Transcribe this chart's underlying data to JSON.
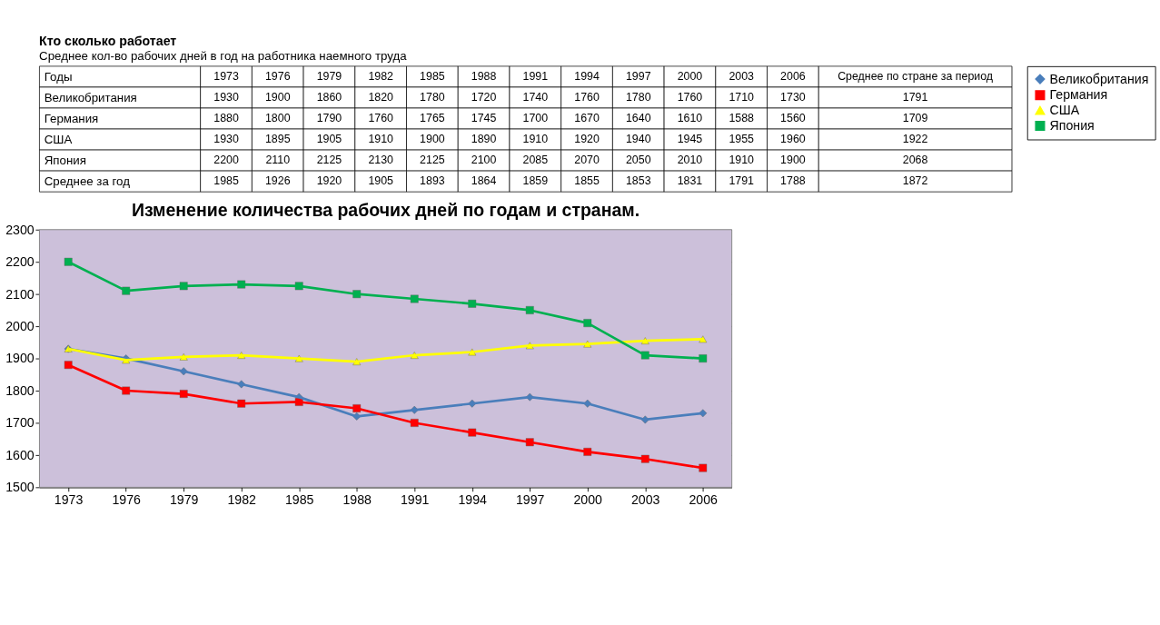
{
  "chart_data": {
    "type": "line",
    "title": "Изменение количества рабочих дней по годам и странам.",
    "categories": [
      "1973",
      "1976",
      "1979",
      "1982",
      "1985",
      "1988",
      "1991",
      "1994",
      "1997",
      "2000",
      "2003",
      "2006"
    ],
    "series": [
      {
        "name": "Великобритания",
        "color": "#4a7ebb",
        "marker": "diamond",
        "values": [
          1930,
          1900,
          1860,
          1820,
          1780,
          1720,
          1740,
          1760,
          1780,
          1760,
          1710,
          1730
        ]
      },
      {
        "name": "Германия",
        "color": "#ff0000",
        "marker": "square",
        "values": [
          1880,
          1800,
          1790,
          1760,
          1765,
          1745,
          1700,
          1670,
          1640,
          1610,
          1588,
          1560
        ]
      },
      {
        "name": "США",
        "color": "#ffff00",
        "marker": "triangle",
        "values": [
          1930,
          1895,
          1905,
          1910,
          1900,
          1890,
          1910,
          1920,
          1940,
          1945,
          1955,
          1960
        ]
      },
      {
        "name": "Япония",
        "color": "#00b050",
        "marker": "square",
        "values": [
          2200,
          2110,
          2125,
          2130,
          2125,
          2100,
          2085,
          2070,
          2050,
          2010,
          1910,
          1900
        ]
      }
    ],
    "ylim": [
      1500,
      2300
    ],
    "yticks": [
      1500,
      1600,
      1700,
      1800,
      1900,
      2000,
      2100,
      2200,
      2300
    ],
    "grid": "y",
    "legend": "right",
    "line_style": "solid",
    "annotations": [
      "Кто сколько работает",
      "Среднее кол-во рабочих дней в год на работника наемного труда",
      "Годы",
      "1973",
      "1976",
      "1979",
      "1982",
      "1985",
      "1988",
      "1991",
      "1994",
      "1997",
      "2000",
      "2003",
      "2006",
      "Среднее по стране за период",
      "Великобритания",
      "1930",
      "1900",
      "1860",
      "1820",
      "1780",
      "1720",
      "1740",
      "1760",
      "1780",
      "1760",
      "1710",
      "1730",
      "1791",
      "Германия",
      "1880",
      "1800",
      "1790",
      "1760",
      "1765",
      "1745",
      "1700",
      "1670",
      "1640",
      "1610",
      "1588",
      "1560",
      "1709",
      "США",
      "1930",
      "1895",
      "1905",
      "1910",
      "1900",
      "1890",
      "1910",
      "1920",
      "1940",
      "1945",
      "1955",
      "1960",
      "1922",
      "Япония",
      "2200",
      "2110",
      "2125",
      "2130",
      "2125",
      "2100",
      "2085",
      "2070",
      "2050",
      "2010",
      "1910",
      "1900",
      "2068",
      "Среднее за год",
      "1985",
      "1926",
      "1920",
      "1905",
      "1893",
      "1864",
      "1859",
      "1855",
      "1853",
      "1831",
      "1791",
      "1788",
      "1872"
    ]
  }
}
